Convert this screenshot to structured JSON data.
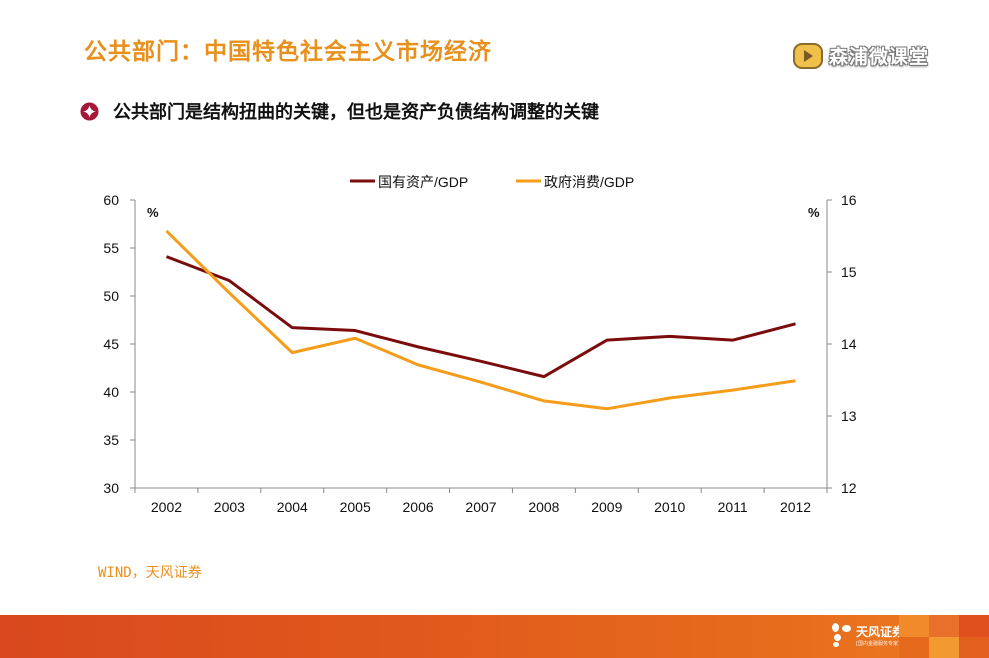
{
  "header": {
    "title": "公共部门：中国特色社会主义市场经济",
    "brand_label": "森浦微课堂"
  },
  "bullet": {
    "icon": "diamond-circle-bullet-icon",
    "text": "公共部门是结构扭曲的关键，但也是资产负债结构调整的关键"
  },
  "chart_data": {
    "type": "line",
    "title": "",
    "categories": [
      "2002",
      "2003",
      "2004",
      "2005",
      "2006",
      "2007",
      "2008",
      "2009",
      "2010",
      "2011",
      "2012"
    ],
    "series": [
      {
        "name": "国有资产/GDP",
        "axis": "left",
        "color": "#7b0c0c",
        "values": [
          54.1,
          51.6,
          46.7,
          46.4,
          44.7,
          43.2,
          41.6,
          45.4,
          45.8,
          45.4,
          47.1
        ]
      },
      {
        "name": "政府消费/GDP",
        "axis": "right",
        "color": "#f59d1a",
        "values": [
          15.57,
          14.71,
          13.88,
          14.08,
          13.71,
          13.47,
          13.21,
          13.1,
          13.25,
          13.36,
          13.49
        ]
      }
    ],
    "y_left": {
      "label": "%",
      "ylim": [
        30,
        60
      ],
      "ticks": [
        30,
        35,
        40,
        45,
        50,
        55,
        60
      ]
    },
    "y_right": {
      "label": "%",
      "ylim": [
        12,
        16
      ],
      "ticks": [
        12,
        13,
        14,
        15,
        16
      ]
    },
    "xlabel": "",
    "grid": false,
    "legend_position": "top-center"
  },
  "source_note": "WIND，天风证券",
  "footer": {
    "logo_name": "天风证券",
    "logo_sub": "[国内金融服务专家]"
  }
}
